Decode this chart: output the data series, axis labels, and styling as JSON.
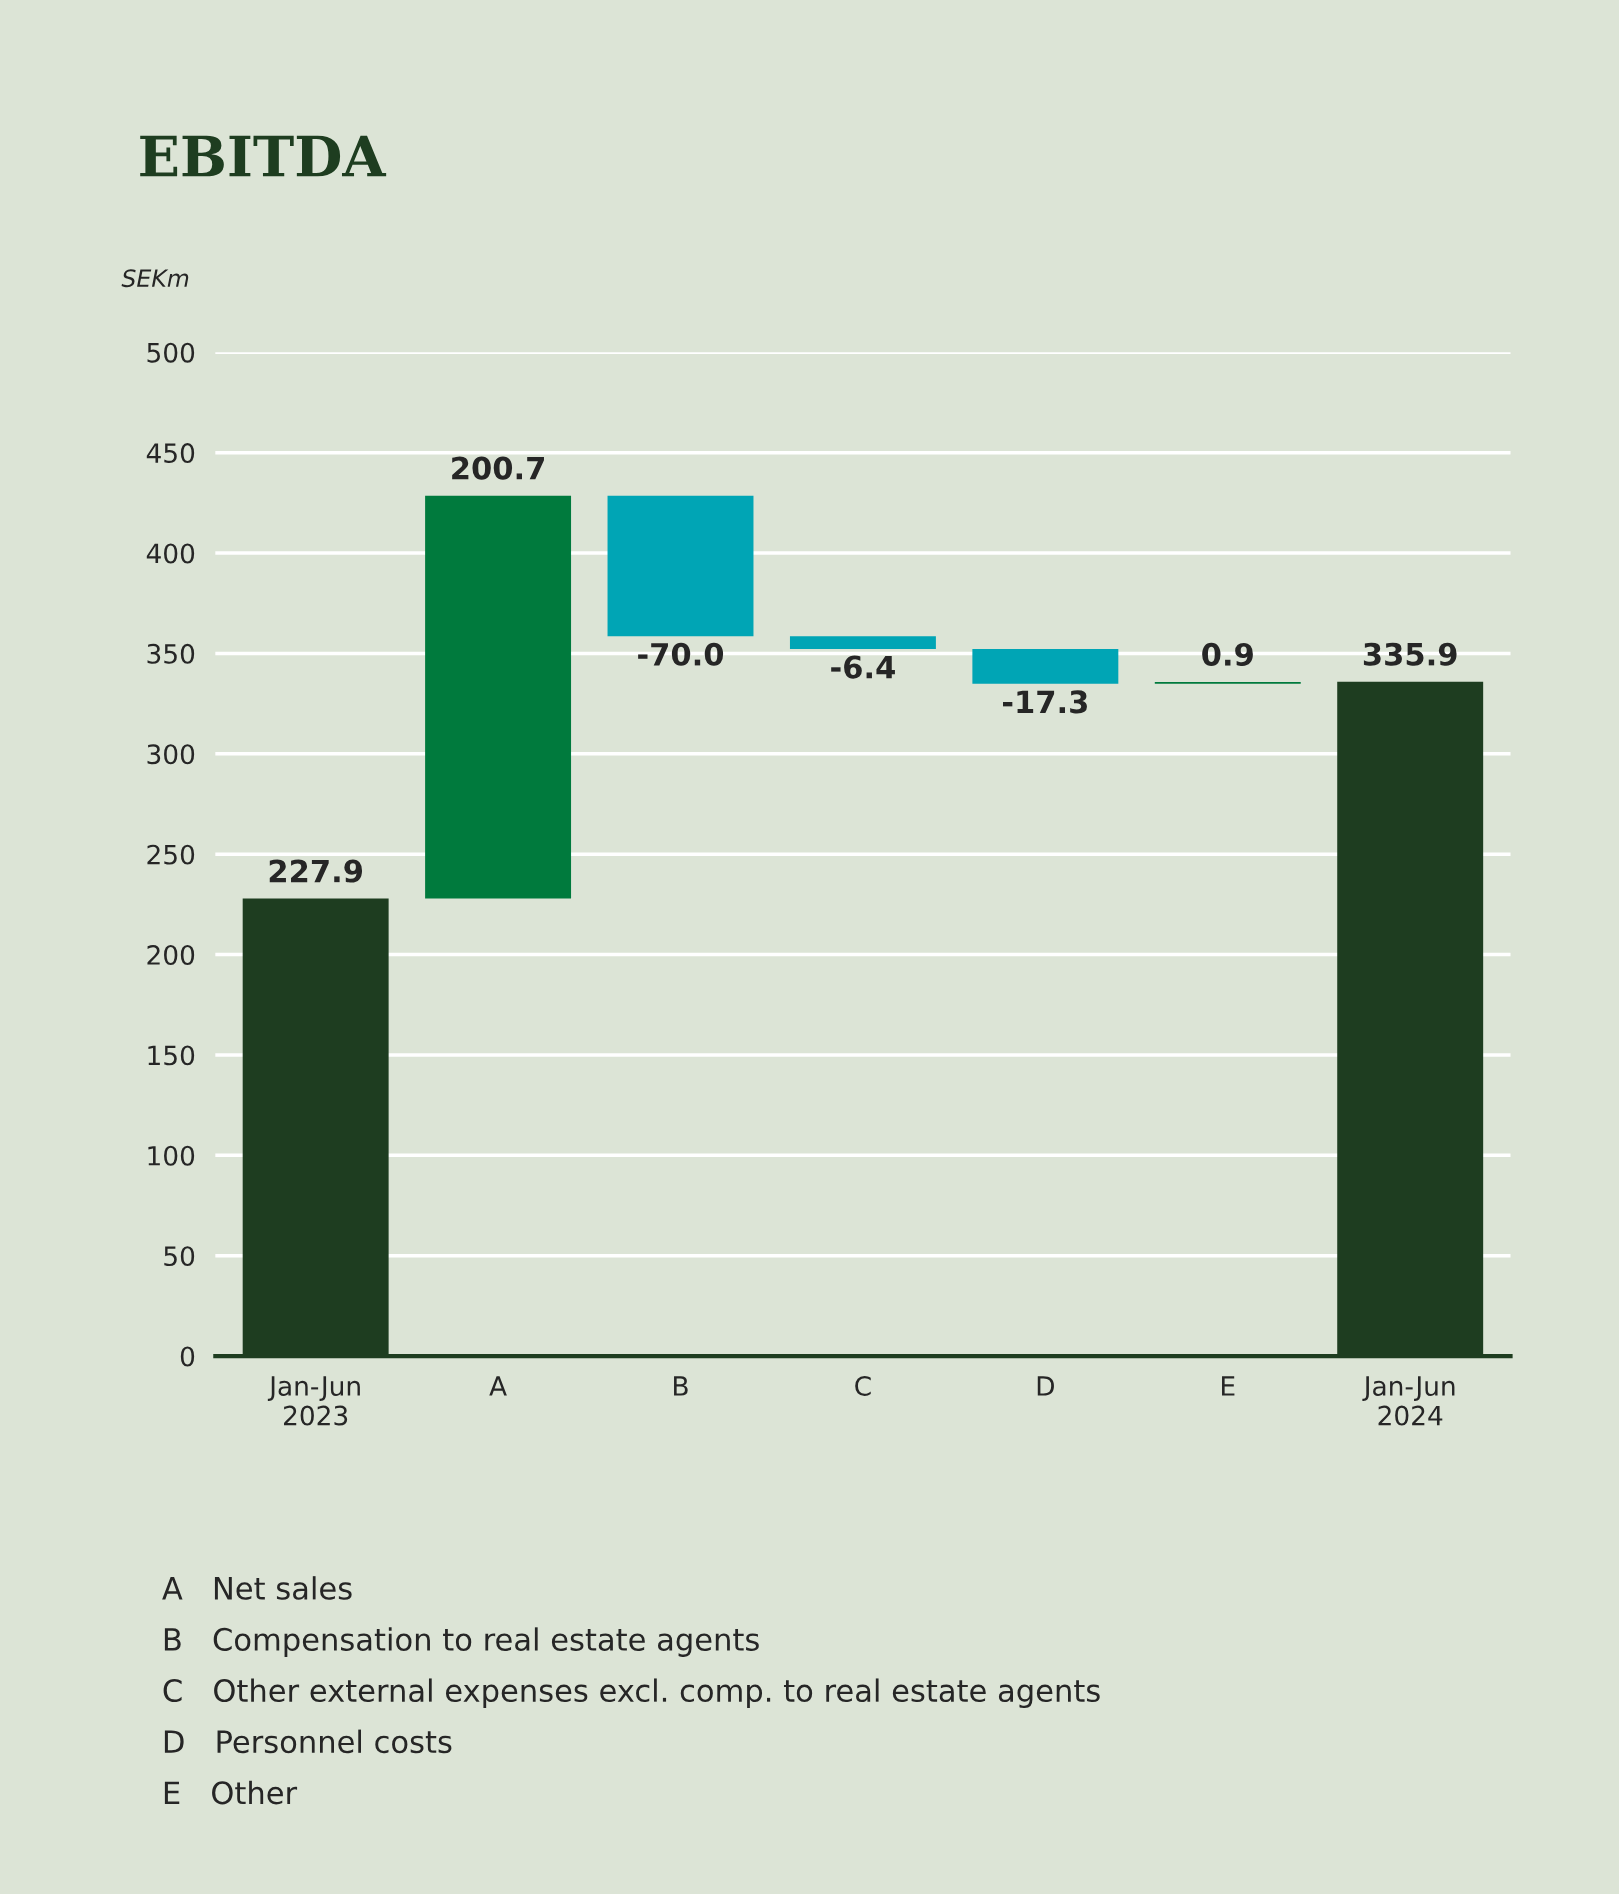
{
  "chart_data": {
    "type": "bar",
    "title": "EBITDA",
    "ylabel": "SEKm",
    "categories": [
      "Jan-Jun\n2023",
      "A",
      "B",
      "C",
      "D",
      "E",
      "Jan-Jun\n2024"
    ],
    "values": [
      227.9,
      200.7,
      -70.0,
      -6.4,
      -17.3,
      0.9,
      335.9
    ],
    "base": [
      0,
      227.9,
      428.6,
      358.6,
      352.2,
      334.9,
      0
    ],
    "colors": [
      "#1e3d20",
      "#007a3d",
      "#00a5b5",
      "#00a5b5",
      "#00a5b5",
      "#007a3d",
      "#1e3d20"
    ],
    "value_labels": [
      "227.9",
      "200.7",
      "-70.0",
      "-6.4",
      "-17.3",
      "0.9",
      "335.9"
    ],
    "ylim": [
      0,
      500
    ],
    "yticks": [
      0,
      50,
      100,
      150,
      200,
      250,
      300,
      350,
      400,
      450,
      500
    ],
    "grid": "y",
    "legend": false,
    "annotations": [
      "A   Net sales",
      "B   Compensation to real estate agents",
      "C   Other external expenses excl. comp. to real estate agents",
      "D   Personnel costs",
      "E   Other"
    ]
  }
}
